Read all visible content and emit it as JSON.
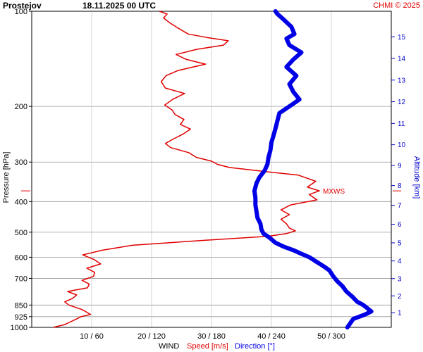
{
  "header": {
    "station": "Prostejov",
    "datetime": "18.11.2025 00 UTC",
    "credit": "CHMI © 2025"
  },
  "labels": {
    "wind": "WIND",
    "speed": "Speed [m/s]",
    "direction": "Direction [°]",
    "pressure": "Pressure [hPa]",
    "altitude": "Altitude [km]",
    "mxws": "MXWS"
  },
  "colors": {
    "speed": "#e00000",
    "direction": "#0000e6",
    "grid": "#bbbbbb",
    "altitude_axis": "#0000cc"
  },
  "chart_data": {
    "type": "line",
    "y_scale": "log-pressure",
    "ylim_hpa": [
      1000,
      100
    ],
    "y_ticks_hpa": [
      100,
      200,
      300,
      400,
      500,
      600,
      700,
      850,
      925,
      1000
    ],
    "speed_range_ms": [
      0,
      60
    ],
    "direction_range_deg": [
      0,
      360
    ],
    "x_ticks": [
      {
        "speed": 10,
        "direction": 60,
        "label": "10 / 60"
      },
      {
        "speed": 20,
        "direction": 120,
        "label": "20 / 120"
      },
      {
        "speed": 30,
        "direction": 180,
        "label": "30 / 180"
      },
      {
        "speed": 40,
        "direction": 240,
        "label": "40 / 240"
      },
      {
        "speed": 50,
        "direction": 300,
        "label": "50 / 300"
      }
    ],
    "altitude_ticks_km": [
      1,
      2,
      3,
      4,
      5,
      6,
      7,
      8,
      9,
      10,
      11,
      12,
      13,
      14,
      15
    ],
    "mxws_pressure_hpa": 370,
    "series": [
      {
        "name": "Speed [m/s]",
        "unit": "m/s",
        "points": [
          [
            1000,
            3.6
          ],
          [
            980,
            5.5
          ],
          [
            960,
            6.5
          ],
          [
            940,
            7.5
          ],
          [
            925,
            8.2
          ],
          [
            910,
            9.8
          ],
          [
            880,
            8.5
          ],
          [
            850,
            6.2
          ],
          [
            830,
            5.5
          ],
          [
            810,
            6.8
          ],
          [
            790,
            7.5
          ],
          [
            770,
            6.0
          ],
          [
            750,
            9.3
          ],
          [
            730,
            9.6
          ],
          [
            710,
            8.4
          ],
          [
            690,
            10.3
          ],
          [
            670,
            10.5
          ],
          [
            650,
            9.2
          ],
          [
            630,
            11.5
          ],
          [
            610,
            10.4
          ],
          [
            590,
            8.5
          ],
          [
            570,
            11.8
          ],
          [
            550,
            16.8
          ],
          [
            530,
            29.0
          ],
          [
            515,
            39.5
          ],
          [
            505,
            42.5
          ],
          [
            495,
            44.0
          ],
          [
            485,
            43.0
          ],
          [
            470,
            42.5
          ],
          [
            455,
            41.6
          ],
          [
            440,
            43.0
          ],
          [
            425,
            41.6
          ],
          [
            410,
            43.2
          ],
          [
            395,
            47.6
          ],
          [
            380,
            46.3
          ],
          [
            370,
            48.0
          ],
          [
            360,
            46.0
          ],
          [
            345,
            47.4
          ],
          [
            330,
            44.5
          ],
          [
            320,
            38.0
          ],
          [
            312,
            33.0
          ],
          [
            305,
            31.0
          ],
          [
            298,
            30.0
          ],
          [
            290,
            27.5
          ],
          [
            280,
            26.2
          ],
          [
            270,
            23.2
          ],
          [
            262,
            22.3
          ],
          [
            255,
            23.4
          ],
          [
            245,
            25.2
          ],
          [
            236,
            26.5
          ],
          [
            228,
            24.8
          ],
          [
            220,
            25.4
          ],
          [
            212,
            23.9
          ],
          [
            205,
            23.4
          ],
          [
            198,
            22.2
          ],
          [
            190,
            23.5
          ],
          [
            182,
            25.5
          ],
          [
            175,
            22.3
          ],
          [
            167,
            21.6
          ],
          [
            160,
            22.4
          ],
          [
            154,
            24.4
          ],
          [
            147,
            29.0
          ],
          [
            142,
            25.8
          ],
          [
            137,
            24.1
          ],
          [
            132,
            27.5
          ],
          [
            128,
            32.0
          ],
          [
            124,
            32.8
          ],
          [
            121,
            29.2
          ],
          [
            118,
            26.1
          ],
          [
            113,
            24.4
          ],
          [
            109,
            23.1
          ],
          [
            105,
            22.0
          ],
          [
            102,
            22.6
          ],
          [
            100,
            21.3
          ]
        ]
      },
      {
        "name": "Direction [°]",
        "unit": "deg",
        "points": [
          [
            1000,
            316
          ],
          [
            980,
            318
          ],
          [
            960,
            320
          ],
          [
            940,
            322
          ],
          [
            925,
            328
          ],
          [
            910,
            334
          ],
          [
            890,
            340
          ],
          [
            870,
            336
          ],
          [
            850,
            332
          ],
          [
            830,
            326
          ],
          [
            800,
            321
          ],
          [
            770,
            315
          ],
          [
            740,
            311
          ],
          [
            715,
            306
          ],
          [
            690,
            302
          ],
          [
            660,
            298
          ],
          [
            640,
            292
          ],
          [
            620,
            285
          ],
          [
            600,
            278
          ],
          [
            585,
            270
          ],
          [
            570,
            262
          ],
          [
            555,
            252
          ],
          [
            540,
            244
          ],
          [
            520,
            238
          ],
          [
            505,
            232
          ],
          [
            490,
            230
          ],
          [
            470,
            229
          ],
          [
            450,
            226
          ],
          [
            430,
            225
          ],
          [
            410,
            224
          ],
          [
            390,
            224
          ],
          [
            370,
            223
          ],
          [
            350,
            225
          ],
          [
            335,
            228
          ],
          [
            320,
            233
          ],
          [
            305,
            236
          ],
          [
            290,
            237
          ],
          [
            275,
            239
          ],
          [
            260,
            240
          ],
          [
            248,
            242
          ],
          [
            235,
            244
          ],
          [
            222,
            246
          ],
          [
            210,
            248
          ],
          [
            198,
            260
          ],
          [
            190,
            268
          ],
          [
            180,
            262
          ],
          [
            170,
            258
          ],
          [
            160,
            265
          ],
          [
            150,
            255
          ],
          [
            142,
            262
          ],
          [
            135,
            270
          ],
          [
            128,
            258
          ],
          [
            122,
            255
          ],
          [
            118,
            263
          ],
          [
            112,
            260
          ],
          [
            106,
            252
          ],
          [
            102,
            246
          ],
          [
            100,
            244
          ]
        ]
      }
    ]
  }
}
